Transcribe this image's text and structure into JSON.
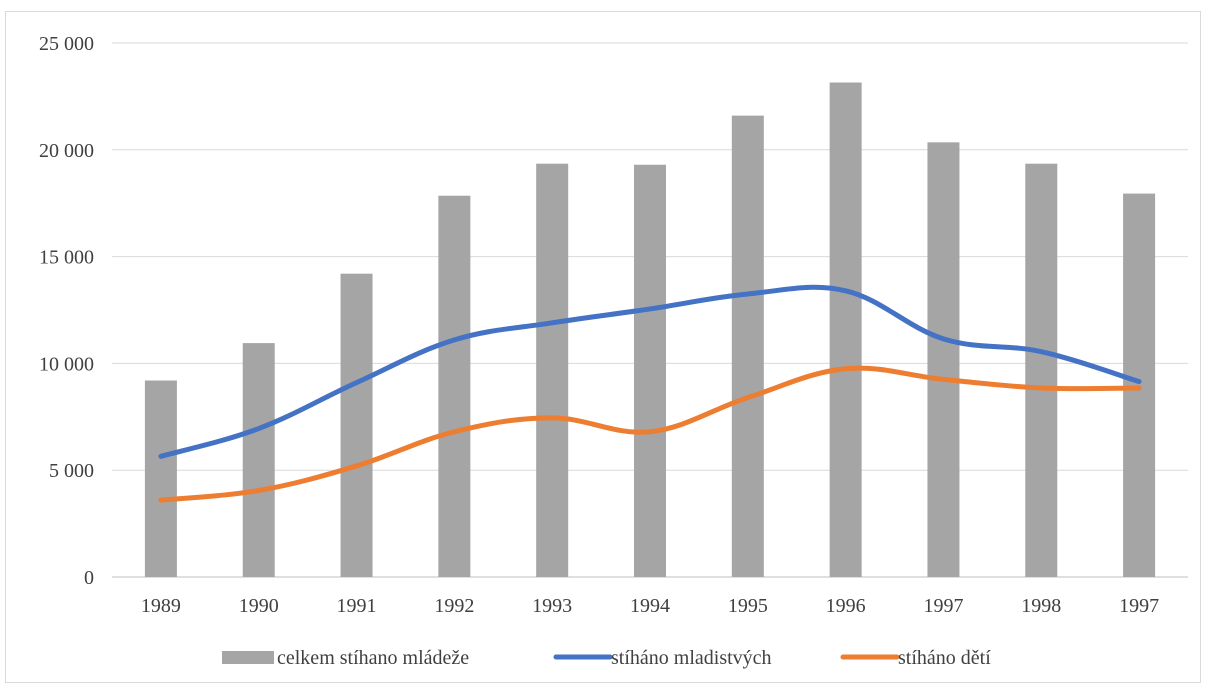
{
  "chart_data": {
    "type": "bar",
    "categories": [
      "1989",
      "1990",
      "1991",
      "1992",
      "1993",
      "1994",
      "1995",
      "1996",
      "1997",
      "1998",
      "1997"
    ],
    "series": [
      {
        "name": "celkem stíhano mládeže",
        "type": "bar",
        "color": "#a5a5a5",
        "values": [
          9200,
          10950,
          14200,
          17850,
          19350,
          19300,
          21600,
          23150,
          20350,
          19350,
          17950
        ]
      },
      {
        "name": "stíháno mladistvých",
        "type": "line",
        "color": "#4472c4",
        "values": [
          5650,
          6950,
          9100,
          11100,
          11900,
          12550,
          13250,
          13400,
          11150,
          10550,
          9150
        ]
      },
      {
        "name": "stíháno dětí",
        "type": "line",
        "color": "#ed7d31",
        "values": [
          3600,
          4050,
          5200,
          6800,
          7450,
          6800,
          8400,
          9750,
          9250,
          8850,
          8850
        ]
      }
    ],
    "yticks": [
      "0",
      "5 000",
      "10 000",
      "15 000",
      "20 000",
      "25 000"
    ],
    "ylim": [
      0,
      25000
    ],
    "grid": true,
    "legend_position": "bottom"
  }
}
